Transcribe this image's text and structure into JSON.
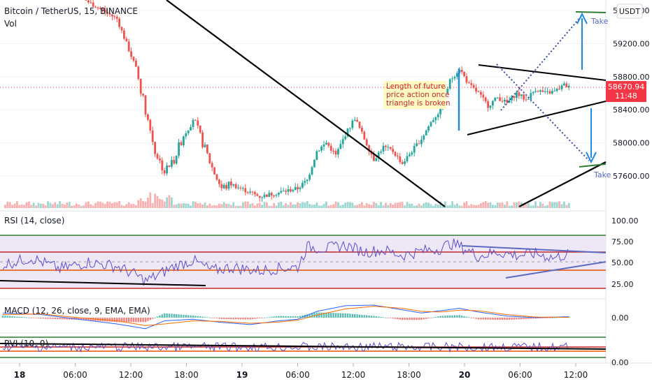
{
  "header": {
    "symbol_line": "Bitcoin / TetherUS, 15, BINANCE",
    "vol_label": "Vol"
  },
  "currency_button": "USDT",
  "price_axis": {
    "ticks": [
      59600,
      59200,
      58800,
      58400,
      58000,
      57600
    ],
    "tick_labels": [
      "59600.00",
      "59200.00",
      "58800.00",
      "58400.00",
      "58000.00",
      "57600.00"
    ],
    "last_price": "58670.94",
    "countdown": "11:48",
    "last_price_color": "#f23645"
  },
  "annotation": {
    "lines": [
      "Length of future",
      "price action once",
      "triangle is broken"
    ],
    "text_color": "#c62828",
    "bg_color": "#fff9c4"
  },
  "take_labels": [
    "Take",
    "Take"
  ],
  "rsi": {
    "label": "RSI (14, close)",
    "ticks": [
      "100.00",
      "75.00",
      "50.00",
      "25.00"
    ],
    "line_color": "#5b4fcf",
    "band_color": "#ede7f6"
  },
  "macd": {
    "label": "MACD (12, 26, close, 9, EMA, EMA)",
    "tick": "0.00",
    "macd_color": "#2962ff",
    "signal_color": "#ff6d00"
  },
  "rvi": {
    "label": "RVI (10, 0)",
    "tick": "0.00"
  },
  "time_axis": {
    "labels": [
      "18",
      "06:00",
      "12:00",
      "18:00",
      "19",
      "06:00",
      "12:00",
      "18:00",
      "20",
      "06:00",
      "12:00"
    ],
    "bold": [
      true,
      false,
      false,
      false,
      true,
      false,
      false,
      false,
      true,
      false,
      false
    ]
  },
  "colors": {
    "up": "#26a69a",
    "down": "#ef5350"
  },
  "chart_data": {
    "type": "candlestick",
    "title": "Bitcoin / TetherUS, 15, BINANCE",
    "x_ticks": [
      "18",
      "06:00",
      "12:00",
      "18:00",
      "19",
      "06:00",
      "12:00",
      "18:00",
      "20",
      "06:00",
      "12:00"
    ],
    "y_ticks": [
      59600,
      59200,
      58800,
      58400,
      58000,
      57600
    ],
    "ylim": [
      57300,
      59800
    ],
    "last_price": 58670.94,
    "price_path": [
      [
        0,
        60100
      ],
      [
        3,
        59850
      ],
      [
        6,
        59950
      ],
      [
        9,
        59700
      ],
      [
        12,
        59500
      ],
      [
        14,
        58900
      ],
      [
        15,
        58400
      ],
      [
        16,
        57900
      ],
      [
        17,
        57650
      ],
      [
        18,
        57800
      ],
      [
        19,
        58100
      ],
      [
        20,
        58300
      ],
      [
        21,
        58000
      ],
      [
        22,
        57700
      ],
      [
        23,
        57450
      ],
      [
        24,
        57500
      ],
      [
        27,
        57350
      ],
      [
        29,
        57400
      ],
      [
        31,
        57450
      ],
      [
        32,
        57550
      ],
      [
        33,
        57900
      ],
      [
        34,
        58000
      ],
      [
        35,
        57850
      ],
      [
        36,
        58100
      ],
      [
        37,
        58300
      ],
      [
        38,
        58050
      ],
      [
        39,
        57800
      ],
      [
        40,
        57950
      ],
      [
        41,
        57900
      ],
      [
        42,
        57750
      ],
      [
        43,
        57900
      ],
      [
        44,
        58050
      ],
      [
        45,
        58250
      ],
      [
        46,
        58400
      ],
      [
        47,
        58750
      ],
      [
        48,
        58900
      ],
      [
        49,
        58700
      ],
      [
        50,
        58600
      ],
      [
        51,
        58450
      ],
      [
        52,
        58550
      ],
      [
        53,
        58480
      ],
      [
        54,
        58600
      ],
      [
        55,
        58520
      ],
      [
        56,
        58650
      ],
      [
        57,
        58600
      ],
      [
        58,
        58620
      ],
      [
        59,
        58700
      ],
      [
        59.5,
        58671
      ]
    ],
    "rsi": {
      "ylim": [
        0,
        100
      ],
      "levels": [
        70,
        50,
        30
      ],
      "path": [
        [
          0,
          47
        ],
        [
          3,
          55
        ],
        [
          6,
          42
        ],
        [
          9,
          50
        ],
        [
          12,
          45
        ],
        [
          14,
          35
        ],
        [
          15,
          28
        ],
        [
          16,
          33
        ],
        [
          18,
          45
        ],
        [
          20,
          52
        ],
        [
          22,
          40
        ],
        [
          24,
          44
        ],
        [
          27,
          40
        ],
        [
          29,
          43
        ],
        [
          31,
          44
        ],
        [
          32,
          68
        ],
        [
          34,
          66
        ],
        [
          36,
          70
        ],
        [
          38,
          62
        ],
        [
          40,
          64
        ],
        [
          42,
          58
        ],
        [
          44,
          63
        ],
        [
          46,
          66
        ],
        [
          47,
          72
        ],
        [
          48,
          69
        ],
        [
          50,
          57
        ],
        [
          52,
          62
        ],
        [
          54,
          58
        ],
        [
          56,
          60
        ],
        [
          58,
          55
        ],
        [
          59.5,
          60
        ]
      ]
    },
    "macd": {
      "macd_path": [
        [
          0,
          15
        ],
        [
          4,
          10
        ],
        [
          8,
          -5
        ],
        [
          12,
          -20
        ],
        [
          15,
          -35
        ],
        [
          17,
          -10
        ],
        [
          20,
          -5
        ],
        [
          23,
          -15
        ],
        [
          26,
          -22
        ],
        [
          29,
          -10
        ],
        [
          31,
          -5
        ],
        [
          33,
          20
        ],
        [
          36,
          38
        ],
        [
          39,
          40
        ],
        [
          42,
          25
        ],
        [
          44,
          15
        ],
        [
          46,
          22
        ],
        [
          48,
          30
        ],
        [
          50,
          18
        ],
        [
          53,
          5
        ],
        [
          56,
          0
        ],
        [
          59.5,
          3
        ]
      ],
      "signal_path": [
        [
          0,
          10
        ],
        [
          4,
          12
        ],
        [
          8,
          0
        ],
        [
          12,
          -10
        ],
        [
          15,
          -25
        ],
        [
          17,
          -20
        ],
        [
          20,
          -10
        ],
        [
          23,
          -12
        ],
        [
          26,
          -18
        ],
        [
          29,
          -14
        ],
        [
          31,
          -8
        ],
        [
          33,
          8
        ],
        [
          36,
          28
        ],
        [
          39,
          36
        ],
        [
          42,
          30
        ],
        [
          44,
          20
        ],
        [
          46,
          18
        ],
        [
          48,
          24
        ],
        [
          50,
          22
        ],
        [
          53,
          10
        ],
        [
          56,
          2
        ],
        [
          59.5,
          1
        ]
      ]
    }
  }
}
